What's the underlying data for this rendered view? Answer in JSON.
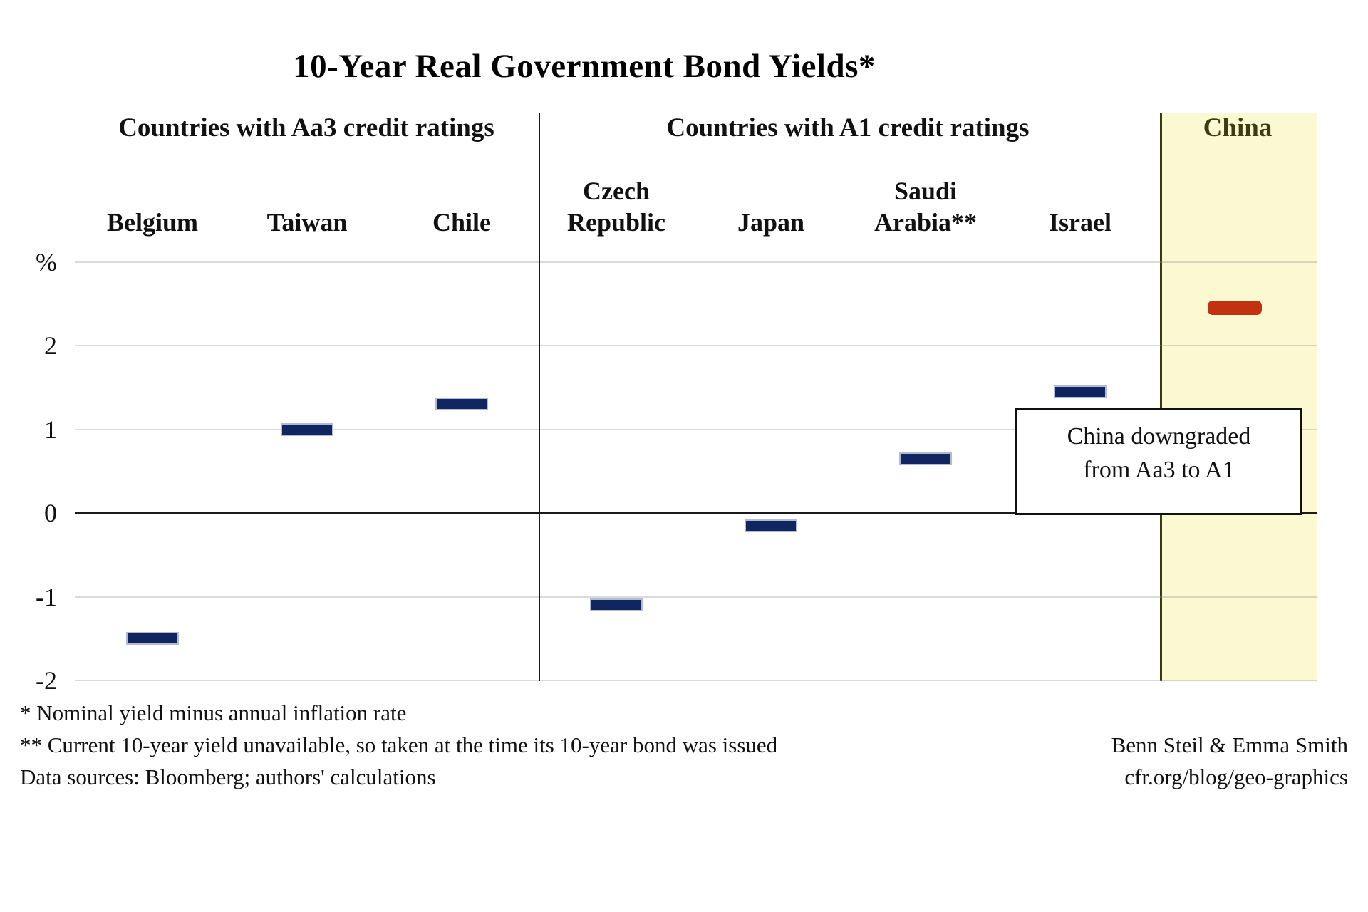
{
  "title": "10-Year Real Government Bond Yields*",
  "headers": {
    "aa3": "Countries with Aa3 credit ratings",
    "a1": "Countries with A1 credit ratings",
    "china": "China"
  },
  "y_axis": {
    "unit_label": "%",
    "ticks": [
      "2",
      "1",
      "0",
      "-1",
      "-2"
    ]
  },
  "annotation": {
    "line1": "China downgraded",
    "line2": "from Aa3 to A1"
  },
  "footnotes": [
    "* Nominal yield minus annual inflation rate",
    "** Current 10-year yield unavailable, so taken at the time its 10-year bond was issued",
    "Data sources: Bloomberg; authors' calculations"
  ],
  "credits": [
    "Benn Steil & Emma Smith",
    "cfr.org/blog/geo-graphics"
  ],
  "colors": {
    "bar_navy": "#112661",
    "bar_navy_outline": "#b3bbd4",
    "bar_red": "#c23211",
    "band_fill": "#fbf9d2",
    "band_border": "#3a3a0c",
    "china_label": "#3c3c10",
    "grid": "#dadada",
    "axis": "#1a1a1a"
  },
  "chart_data": {
    "type": "bar",
    "title": "10-Year Real Government Bond Yields*",
    "xlabel": "",
    "ylabel": "%",
    "ylim": [
      -2,
      3
    ],
    "yticks": [
      2,
      1,
      0,
      -1,
      -2
    ],
    "grid": true,
    "legend": "none",
    "marker_style": "horizontal-dash",
    "groups": [
      {
        "label": "Countries with Aa3 credit ratings",
        "rating": "Aa3"
      },
      {
        "label": "Countries with A1 credit ratings",
        "rating": "A1"
      },
      {
        "label": "China",
        "rating": "downgraded from Aa3 to A1",
        "highlighted": true
      }
    ],
    "points": [
      {
        "country": "Belgium",
        "group": "Aa3",
        "value": -1.5
      },
      {
        "country": "Taiwan",
        "group": "Aa3",
        "value": 1.0
      },
      {
        "country": "Chile",
        "group": "Aa3",
        "value": 1.3
      },
      {
        "country": "Czech Republic",
        "group": "A1",
        "value": -1.1
      },
      {
        "country": "Japan",
        "group": "A1",
        "value": -0.15
      },
      {
        "country": "Saudi Arabia**",
        "group": "A1",
        "value": 0.65
      },
      {
        "country": "Israel",
        "group": "A1",
        "value": 1.45
      },
      {
        "country": "China",
        "group": "China",
        "value": 2.45,
        "highlighted": true
      }
    ],
    "annotation": "China downgraded from Aa3 to A1"
  }
}
